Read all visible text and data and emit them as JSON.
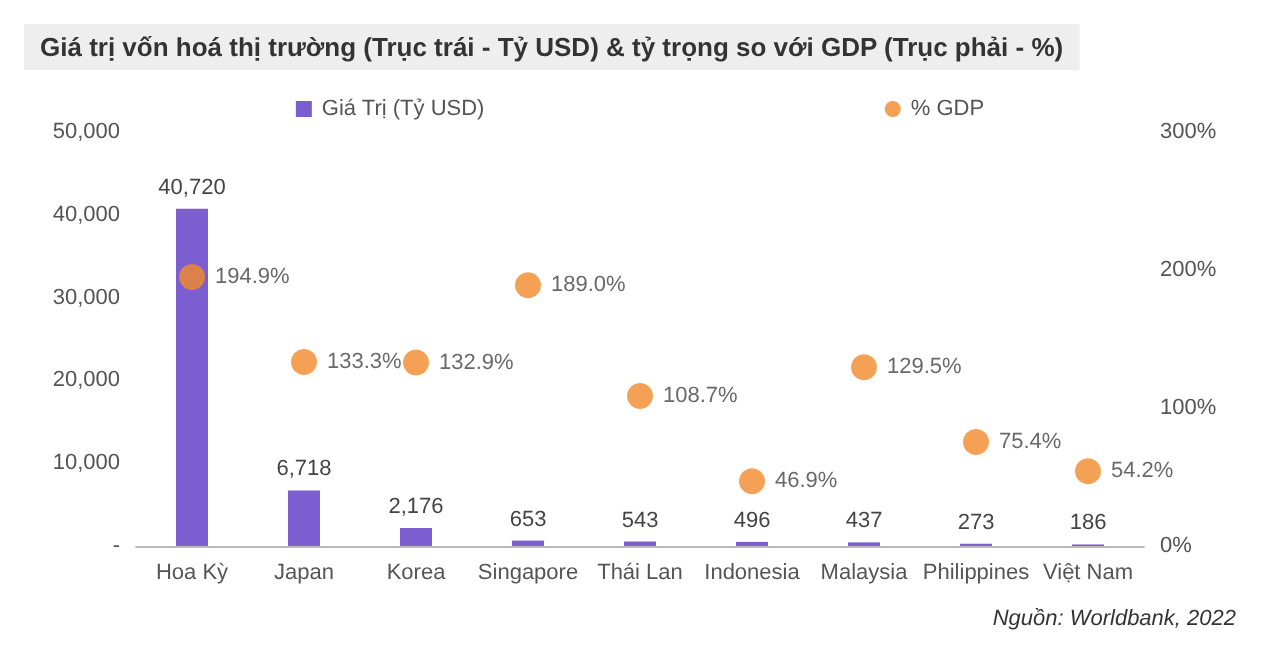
{
  "chart_data": {
    "type": "bar",
    "title": "Giá trị vốn hoá thị trường (Trục trái - Tỷ USD) & tỷ trọng so với GDP (Trục phải - %)",
    "categories": [
      "Hoa Kỳ",
      "Japan",
      "Korea",
      "Singapore",
      "Thái Lan",
      "Indonesia",
      "Malaysia",
      "Philippines",
      "Việt Nam"
    ],
    "series": [
      {
        "name": "Giá Trị (Tỷ USD)",
        "color": "#7b5fd0",
        "values": [
          40720,
          6718,
          2176,
          653,
          543,
          496,
          437,
          273,
          186
        ],
        "value_labels": [
          "40,720",
          "6,718",
          "2,176",
          "653",
          "543",
          "496",
          "437",
          "273",
          "186"
        ]
      },
      {
        "name": "% GDP",
        "type": "scatter",
        "axis": "y2",
        "color": "#f28a2a",
        "values": [
          194.9,
          133.3,
          132.9,
          189.0,
          108.7,
          46.9,
          129.5,
          75.4,
          54.2
        ],
        "value_labels": [
          "194.9%",
          "133.3%",
          "132.9%",
          "189.0%",
          "108.7%",
          "46.9%",
          "129.5%",
          "75.4%",
          "54.2%"
        ]
      }
    ],
    "ylim": [
      0,
      50000
    ],
    "yticks": [
      {
        "value": 0,
        "label": "-"
      },
      {
        "value": 10000,
        "label": "10,000"
      },
      {
        "value": 20000,
        "label": "20,000"
      },
      {
        "value": 30000,
        "label": "30,000"
      },
      {
        "value": 40000,
        "label": "40,000"
      },
      {
        "value": 50000,
        "label": "50,000"
      }
    ],
    "y2lim": [
      0,
      300
    ],
    "y2ticks": [
      {
        "value": 0,
        "label": "0%"
      },
      {
        "value": 100,
        "label": "100%"
      },
      {
        "value": 200,
        "label": "200%"
      },
      {
        "value": 300,
        "label": "300%"
      }
    ],
    "marker": "circle",
    "grid": false,
    "legend": "top",
    "annotations": [
      "Nguồn: Worldbank, 2022"
    ]
  }
}
